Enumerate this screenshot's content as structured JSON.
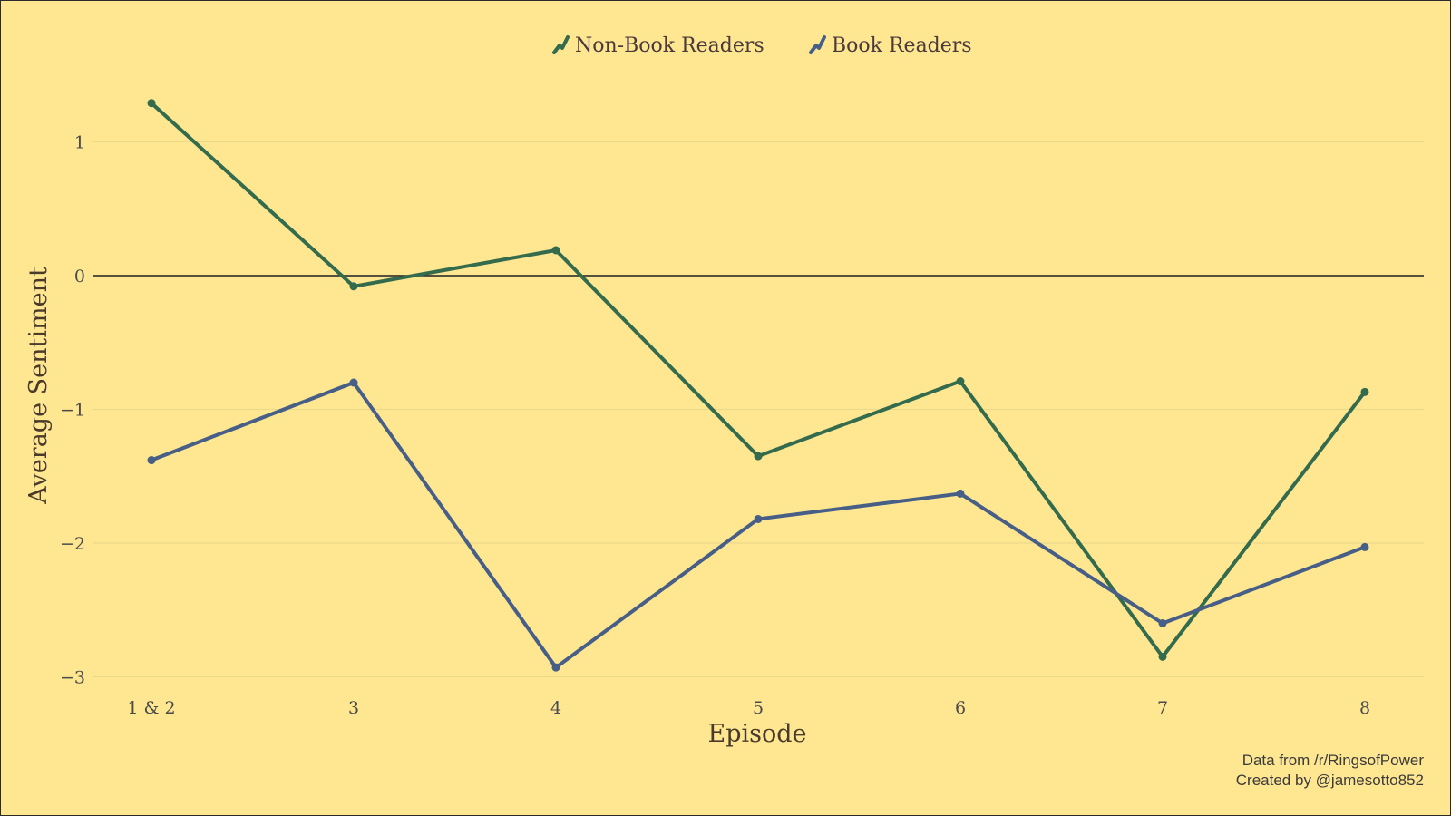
{
  "chart_data": {
    "type": "line",
    "categories": [
      "1 & 2",
      "3",
      "4",
      "5",
      "6",
      "7",
      "8"
    ],
    "series": [
      {
        "name": "Non-Book Readers",
        "values": [
          1.29,
          -0.08,
          0.19,
          -1.35,
          -0.79,
          -2.85,
          -0.87
        ],
        "color": "#336B4C"
      },
      {
        "name": "Book Readers",
        "values": [
          -1.38,
          -0.8,
          -2.93,
          -1.82,
          -1.63,
          -2.6,
          -2.03
        ],
        "color": "#475F86"
      }
    ],
    "xlabel": "Episode",
    "ylabel": "Average Sentiment",
    "ylim": [
      -3.1,
      1.45
    ],
    "yticks": [
      1,
      0,
      -1,
      -2,
      -3
    ],
    "ytick_labels": [
      "1",
      "0",
      "−1",
      "−2",
      "−3"
    ],
    "zero_line": true,
    "grid": true,
    "legend_position": "top-center",
    "legend_icon": "trend-line-icon",
    "background": "#FFE792",
    "caption": [
      "Data from /r/RingsofPower",
      "Created by @jamesotto852"
    ]
  }
}
